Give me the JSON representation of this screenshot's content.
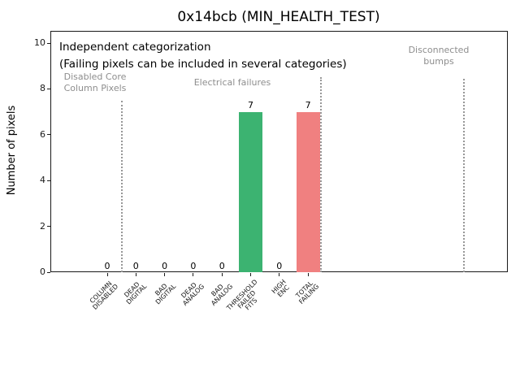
{
  "title": "0x14bcb (MIN_HEALTH_TEST)",
  "annotations": {
    "independent": "Independent categorization",
    "failing_note": "(Failing pixels can be included in several categories)"
  },
  "colors": {
    "bar_green": "#3CB371",
    "bar_red": "#F08080",
    "section_label_gray": "#8e8e8e",
    "separator_gray": "#979797",
    "axis_text": "#1a1a1a"
  },
  "chart_data": {
    "type": "bar",
    "title": "0x14bcb (MIN_HEALTH_TEST)",
    "xlabel": "",
    "ylabel": "Number of pixels",
    "ylim": [
      0,
      10.5
    ],
    "xlim_category_units": [
      -2,
      14
    ],
    "yticks": [
      0,
      2,
      4,
      6,
      8,
      10
    ],
    "grid": false,
    "legend": null,
    "categories": [
      "COLUMN DISABLED",
      "DEAD DIGITAL",
      "BAD DIGITAL",
      "DEAD ANALOG",
      "BAD ANALOG",
      "THRESHOLD FAILED FITS",
      "HIGH ENC",
      "TOTAL FAILING"
    ],
    "category_lines": [
      "COLUMN\nDISABLED",
      "DEAD\nDIGITAL",
      "BAD\nDIGITAL",
      "DEAD\nANALOG",
      "BAD\nANALOG",
      "THRESHOLD\nFAILED\nFITS",
      "HIGH\nENC",
      "TOTAL\nFAILING"
    ],
    "values": [
      0,
      0,
      0,
      0,
      0,
      7,
      0,
      7
    ],
    "bar_colors": [
      null,
      null,
      null,
      null,
      null,
      "#3CB371",
      null,
      "#F08080"
    ],
    "sections": [
      {
        "label": "Disabled Core\nColumn Pixels",
        "color": "#8e8e8e"
      },
      {
        "label": "Electrical failures",
        "color": "#8e8e8e"
      },
      {
        "label": "Disconnected\nbumps",
        "color": "#8e8e8e"
      }
    ],
    "separators": [
      {
        "x": 0.5,
        "ymax": 7.5
      },
      {
        "x": 7.45,
        "ymax": 8.5
      },
      {
        "x": 12.45,
        "ymax": 8.45
      }
    ]
  }
}
